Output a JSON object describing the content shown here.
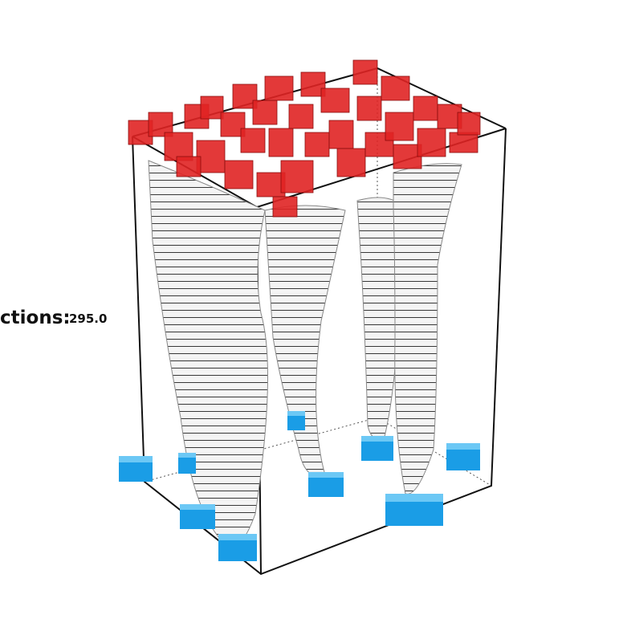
{
  "label": {
    "name": "ctions:",
    "value": "295.0"
  }
}
